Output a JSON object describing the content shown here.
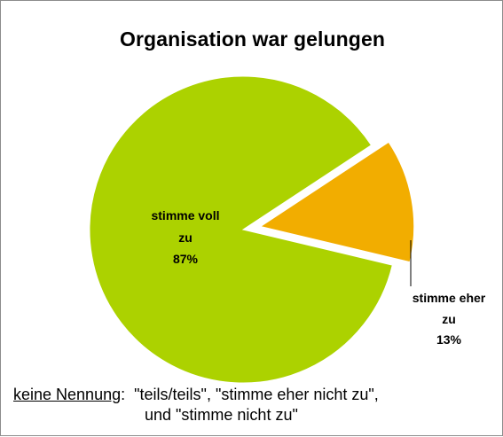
{
  "chart_data": {
    "type": "pie",
    "title": "Organisation war gelungen",
    "slices": [
      {
        "name": "stimme voll zu",
        "value": 87,
        "label_lines": [
          "stimme voll",
          "zu",
          "87%"
        ],
        "color": "#acd200",
        "exploded": false
      },
      {
        "name": "stimme eher zu",
        "value": 13,
        "label_lines": [
          "stimme eher",
          "zu",
          "13%"
        ],
        "color": "#f2ad00",
        "exploded": true
      }
    ]
  },
  "note": {
    "label": "keine Nennung",
    "colon": ":",
    "text_line1": "\"teils/teils\", \"stimme eher nicht zu\",",
    "text_line2": "und \"stimme nicht zu\""
  }
}
